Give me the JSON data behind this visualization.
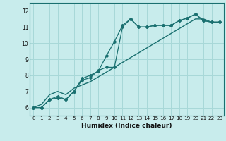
{
  "title": "",
  "xlabel": "Humidex (Indice chaleur)",
  "ylabel": "",
  "background_color": "#c8ecec",
  "line_color": "#1a7070",
  "grid_color": "#a8d8d8",
  "xlim": [
    -0.5,
    23.5
  ],
  "ylim": [
    5.5,
    12.5
  ],
  "xticks": [
    0,
    1,
    2,
    3,
    4,
    5,
    6,
    7,
    8,
    9,
    10,
    11,
    12,
    13,
    14,
    15,
    16,
    17,
    18,
    19,
    20,
    21,
    22,
    23
  ],
  "yticks": [
    6,
    7,
    8,
    9,
    10,
    11,
    12
  ],
  "series": [
    [
      6.0,
      6.0,
      6.5,
      6.7,
      6.5,
      7.0,
      7.8,
      8.0,
      8.25,
      9.2,
      10.1,
      11.1,
      11.5,
      11.0,
      11.0,
      11.1,
      11.1,
      11.1,
      11.4,
      11.55,
      11.8,
      11.4,
      11.3,
      11.3
    ],
    [
      6.0,
      6.0,
      6.5,
      6.6,
      6.5,
      7.0,
      7.7,
      7.85,
      8.3,
      8.5,
      8.5,
      11.0,
      11.5,
      11.0,
      11.0,
      11.1,
      11.1,
      11.1,
      11.4,
      11.55,
      11.8,
      11.4,
      11.3,
      11.3
    ],
    [
      6.0,
      6.2,
      6.8,
      7.0,
      6.8,
      7.2,
      7.4,
      7.6,
      7.9,
      8.2,
      8.5,
      8.8,
      9.1,
      9.4,
      9.7,
      10.0,
      10.3,
      10.6,
      10.9,
      11.2,
      11.5,
      11.5,
      11.3,
      11.3
    ]
  ]
}
